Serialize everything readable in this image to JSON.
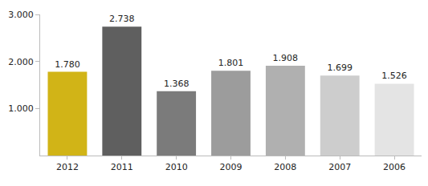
{
  "chart_data": {
    "type": "bar",
    "categories": [
      "2012",
      "2011",
      "2010",
      "2009",
      "2008",
      "2007",
      "2006"
    ],
    "values": [
      1780,
      2738,
      1368,
      1801,
      1908,
      1699,
      1526
    ],
    "value_labels": [
      "1.780",
      "2.738",
      "1.368",
      "1.801",
      "1.908",
      "1.699",
      "1.526"
    ],
    "data_labels": true,
    "colors": [
      "#d1b417",
      "#5f5f5f",
      "#7b7b7b",
      "#9c9c9c",
      "#b0b0b0",
      "#cdcdcd",
      "#e4e4e4"
    ],
    "ylim": [
      0,
      3000
    ],
    "yticks": [
      {
        "value": 1000,
        "label": "1.000"
      },
      {
        "value": 2000,
        "label": "2.000"
      },
      {
        "value": 3000,
        "label": "3.000"
      }
    ],
    "grid": false
  }
}
